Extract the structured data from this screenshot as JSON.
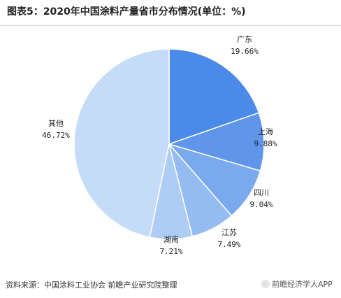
{
  "header": {
    "title": "图表5：2020年中国涂料产量省市分布情况(单位：%)"
  },
  "chart_data": {
    "type": "pie",
    "title": "图表5：2020年中国涂料产量省市分布情况(单位：%)",
    "slices": [
      {
        "label": "广东",
        "value": 19.66,
        "value_label": "19.66%",
        "color": "#4a8ae8"
      },
      {
        "label": "上海",
        "value": 9.88,
        "value_label": "9.88%",
        "color": "#5f96ea"
      },
      {
        "label": "四川",
        "value": 9.04,
        "value_label": "9.04%",
        "color": "#7aa9ee"
      },
      {
        "label": "江苏",
        "value": 7.49,
        "value_label": "7.49%",
        "color": "#94bbf2"
      },
      {
        "label": "湖南",
        "value": 7.21,
        "value_label": "7.21%",
        "color": "#aecdf5"
      },
      {
        "label": "其他",
        "value": 46.72,
        "value_label": "46.72%",
        "color": "#c5dcf8"
      }
    ],
    "start_angle_deg": 0,
    "direction": "clockwise",
    "edge_color": "#ffffff"
  },
  "footer": {
    "source": "资料来源：中国涂料工业协会 前瞻产业研究院整理",
    "watermark": "前瞻经济学人APP"
  }
}
